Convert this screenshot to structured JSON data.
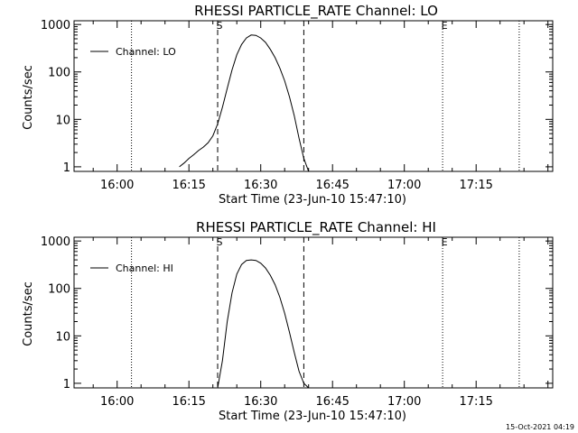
{
  "footer": {
    "timestamp": "15-Oct-2021 04:19"
  },
  "chart_data": [
    {
      "type": "line",
      "title": "RHESSI PARTICLE_RATE Channel: LO",
      "xlabel": "Start Time (23-Jun-10 15:47:10)",
      "ylabel": "Counts/sec",
      "xlim": [
        "15:51:00",
        "17:31:00"
      ],
      "ylim": [
        0.8,
        1200
      ],
      "yscale": "log",
      "x_ticks": [
        "16:00",
        "16:15",
        "16:30",
        "16:45",
        "17:00",
        "17:15"
      ],
      "y_ticks": [
        "1",
        "10",
        "100",
        "1000"
      ],
      "legend": {
        "position": "upper-left",
        "entries": [
          "Channel: LO"
        ]
      },
      "markers": [
        {
          "time": "16:03:00",
          "style": "dotted",
          "label": ""
        },
        {
          "time": "16:21:00",
          "style": "dashed",
          "label": "S"
        },
        {
          "time": "16:39:00",
          "style": "dashed",
          "label": ""
        },
        {
          "time": "17:08:00",
          "style": "dotted",
          "label": "E"
        },
        {
          "time": "17:24:00",
          "style": "dotted",
          "label": ""
        }
      ],
      "series": [
        {
          "name": "Channel: LO",
          "x": [
            "16:13:00",
            "16:14:00",
            "16:15:00",
            "16:16:00",
            "16:17:00",
            "16:18:00",
            "16:19:00",
            "16:20:00",
            "16:21:00",
            "16:22:00",
            "16:23:00",
            "16:24:00",
            "16:25:00",
            "16:26:00",
            "16:27:00",
            "16:28:00",
            "16:29:00",
            "16:30:00",
            "16:31:00",
            "16:32:00",
            "16:33:00",
            "16:34:00",
            "16:35:00",
            "16:36:00",
            "16:37:00",
            "16:38:00",
            "16:39:00",
            "16:40:00"
          ],
          "y": [
            1,
            1.2,
            1.5,
            1.8,
            2.2,
            2.6,
            3.2,
            4.5,
            8,
            18,
            45,
            110,
            230,
            380,
            520,
            600,
            590,
            520,
            420,
            300,
            200,
            120,
            65,
            30,
            12,
            4,
            1.5,
            0.8
          ]
        }
      ]
    },
    {
      "type": "line",
      "title": "RHESSI PARTICLE_RATE Channel: HI",
      "xlabel": "Start Time (23-Jun-10 15:47:10)",
      "ylabel": "Counts/sec",
      "xlim": [
        "15:51:00",
        "17:31:00"
      ],
      "ylim": [
        0.8,
        1200
      ],
      "yscale": "log",
      "x_ticks": [
        "16:00",
        "16:15",
        "16:30",
        "16:45",
        "17:00",
        "17:15"
      ],
      "y_ticks": [
        "1",
        "10",
        "100",
        "1000"
      ],
      "legend": {
        "position": "upper-left",
        "entries": [
          "Channel: HI"
        ]
      },
      "markers": [
        {
          "time": "16:03:00",
          "style": "dotted",
          "label": ""
        },
        {
          "time": "16:21:00",
          "style": "dashed",
          "label": "S"
        },
        {
          "time": "16:39:00",
          "style": "dashed",
          "label": ""
        },
        {
          "time": "17:08:00",
          "style": "dotted",
          "label": "E"
        },
        {
          "time": "17:24:00",
          "style": "dotted",
          "label": ""
        }
      ],
      "series": [
        {
          "name": "Channel: HI",
          "x": [
            "16:21:00",
            "16:22:00",
            "16:23:00",
            "16:24:00",
            "16:25:00",
            "16:26:00",
            "16:27:00",
            "16:28:00",
            "16:29:00",
            "16:30:00",
            "16:31:00",
            "16:32:00",
            "16:33:00",
            "16:34:00",
            "16:35:00",
            "16:36:00",
            "16:37:00",
            "16:38:00",
            "16:39:00",
            "16:40:00"
          ],
          "y": [
            0.8,
            3,
            20,
            80,
            200,
            320,
            390,
            400,
            390,
            340,
            270,
            190,
            120,
            65,
            30,
            12,
            4.5,
            1.8,
            1.0,
            0.8
          ]
        }
      ]
    }
  ]
}
